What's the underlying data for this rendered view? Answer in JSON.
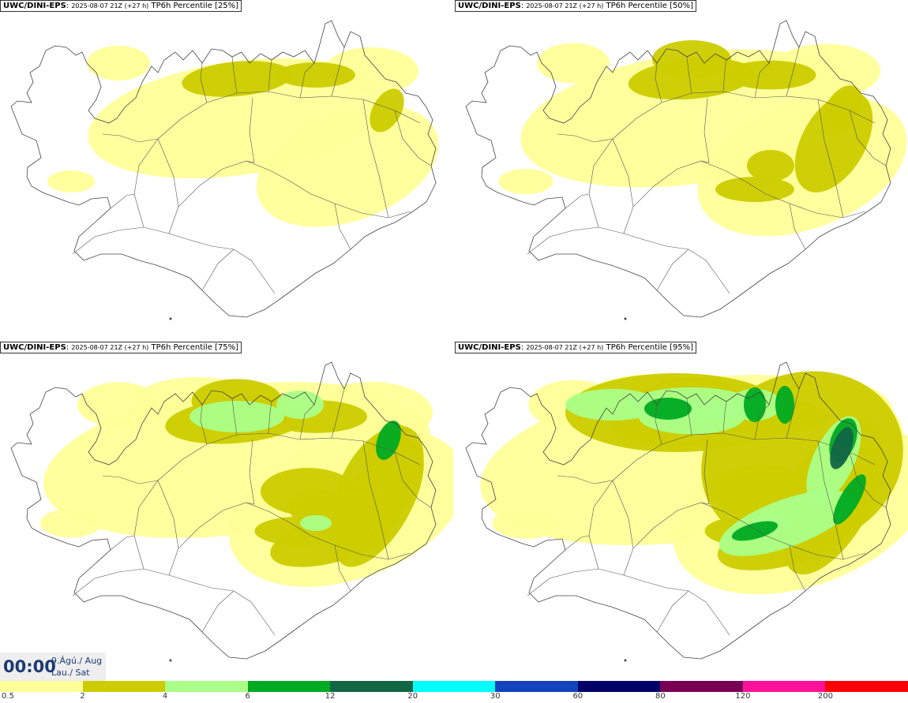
{
  "model": "UWC/DINI-EPS",
  "run": "2025-08-07 21Z (+27 h)",
  "field": "TP6h Percentile",
  "panels": [
    {
      "label": "[25%]",
      "level": 0.25
    },
    {
      "label": "[50%]",
      "level": 0.5
    },
    {
      "label": "[75%]",
      "level": 0.75
    },
    {
      "label": "[95%]",
      "level": 0.95
    }
  ],
  "time": {
    "clock": "00:00",
    "date": "9.Ágú./ Aug",
    "day": "Lau./ Sat"
  },
  "legend": {
    "labels": [
      "0.5",
      "2",
      "4",
      "6",
      "12",
      "20",
      "30",
      "60",
      "80",
      "120",
      "200"
    ],
    "colors": [
      "#ffff99",
      "#cccc00",
      "#aaff88",
      "#00aa22",
      "#116644",
      "#00ffff",
      "#1144bb",
      "#000066",
      "#770055",
      "#ff1199",
      "#ff0000"
    ]
  }
}
